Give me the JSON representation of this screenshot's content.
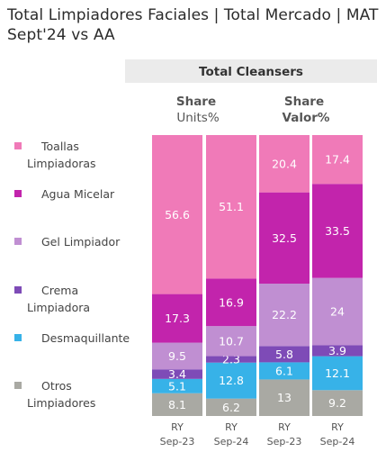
{
  "title": "Total  Limpiadores Faciales | Total Mercado | MAT Sept'24 vs AA",
  "panel_header": "Total Cleansers",
  "group_headers": [
    {
      "line1": "Share",
      "line2": "Units%"
    },
    {
      "line1": "Share",
      "line2": "Valor%"
    }
  ],
  "colors": {
    "Toallas Limpiadoras": "#f07ab8",
    "Agua Micelar": "#c224ac",
    "Gel Limpiador": "#c08fd2",
    "Crema Limpiadora": "#7e4bb7",
    "Desmaquillante": "#37b2e8",
    "Otros Limpiadores": "#a9a9a3"
  },
  "chart_data": {
    "type": "bar",
    "stacked": true,
    "percent": true,
    "categories": [
      "RY Sep-23",
      "RY Sep-24",
      "RY Sep-23",
      "RY Sep-24"
    ],
    "category_groups": [
      "Share Units%",
      "Share Units%",
      "Share Valor%",
      "Share Valor%"
    ],
    "series": [
      {
        "name": "Otros Limpiadores",
        "values": [
          8.1,
          6.2,
          13,
          9.2
        ]
      },
      {
        "name": "Desmaquillante",
        "values": [
          5.1,
          12.8,
          6.1,
          12.1
        ]
      },
      {
        "name": "Crema Limpiadora",
        "values": [
          3.4,
          2.3,
          5.8,
          3.9
        ]
      },
      {
        "name": "Gel Limpiador",
        "values": [
          9.5,
          10.7,
          22.2,
          24
        ]
      },
      {
        "name": "Agua Micelar",
        "values": [
          17.3,
          16.9,
          32.5,
          33.5
        ]
      },
      {
        "name": "Toallas Limpiadoras",
        "values": [
          56.6,
          51.1,
          20.4,
          17.4
        ]
      }
    ],
    "legend": [
      {
        "label1": "Toallas",
        "label2": "Limpiadoras"
      },
      {
        "label1": "Agua Micelar",
        "label2": ""
      },
      {
        "label1": "Gel Limpiador",
        "label2": ""
      },
      {
        "label1": "Crema",
        "label2": "Limpiadora"
      },
      {
        "label1": "Desmaquillante",
        "label2": ""
      },
      {
        "label1": "Otros",
        "label2": "Limpiadores"
      }
    ],
    "tick_labels": [
      {
        "line1": "RY",
        "line2": "Sep-23"
      },
      {
        "line1": "RY",
        "line2": "Sep-24"
      },
      {
        "line1": "RY",
        "line2": "Sep-23"
      },
      {
        "line1": "RY",
        "line2": "Sep-24"
      }
    ],
    "ylim": [
      0,
      100
    ],
    "legend_position": "left"
  }
}
